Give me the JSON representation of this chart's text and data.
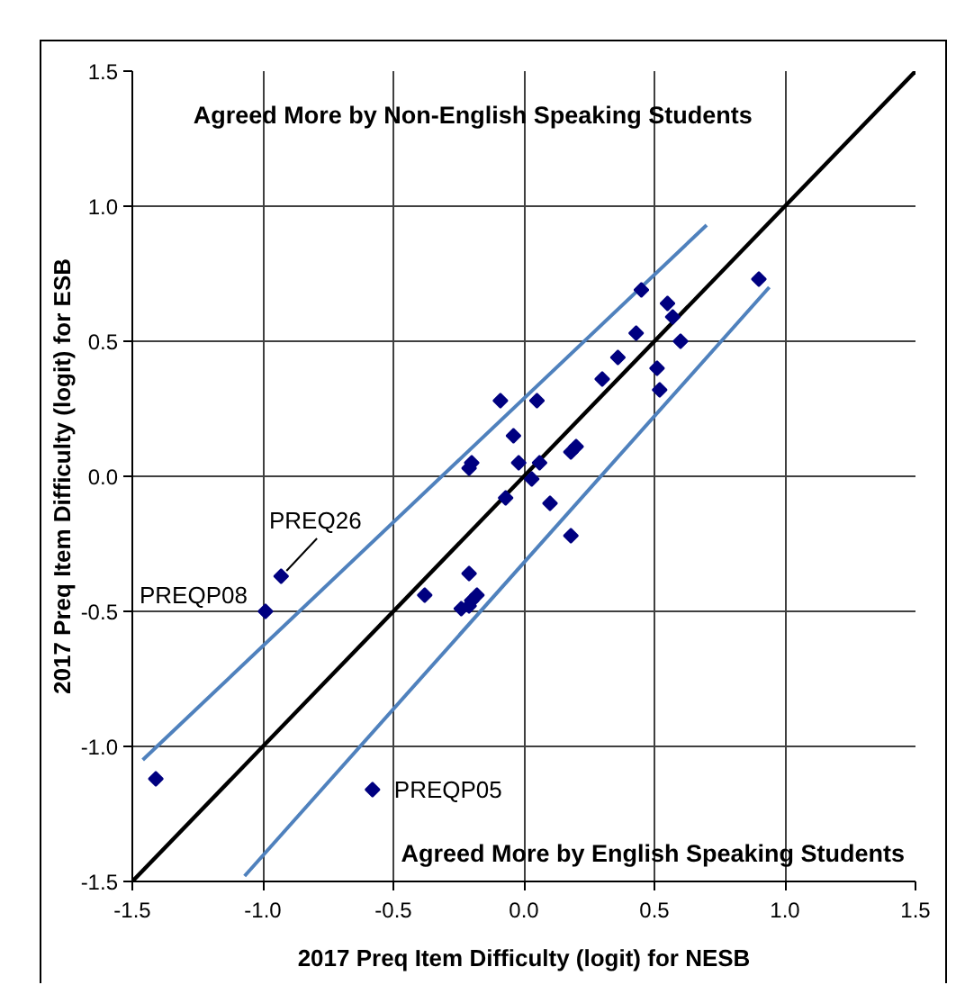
{
  "chart_data": {
    "type": "scatter",
    "xlabel": "2017 Preq Item Difficulty (logit) for NESB",
    "ylabel": "2017 Preq Item Difficulty (logit) for ESB",
    "xlim": [
      -1.5,
      1.5
    ],
    "ylim": [
      -1.5,
      1.5
    ],
    "xticks": [
      -1.5,
      {
        "value": -1,
        "label": "-1.0"
      },
      -0.5,
      {
        "value": 0,
        "label": "0.0"
      },
      0.5,
      {
        "value": 1,
        "label": "1.0"
      },
      1.5
    ],
    "yticks": [
      -1.5,
      {
        "value": -1,
        "label": "-1.0"
      },
      -0.5,
      {
        "value": 0,
        "label": "0.0"
      },
      0.5,
      {
        "value": 1,
        "label": "1.0"
      },
      1.5
    ],
    "grid": true,
    "line_style": "solid",
    "series": [
      {
        "type": "line",
        "color": "#000000",
        "x": [
          -1.5,
          1.5
        ],
        "values": [
          -1.5,
          1.5
        ]
      },
      {
        "type": "line",
        "color": "#4f81bd",
        "x": [
          -1.46,
          0.7
        ],
        "values": [
          -1.05,
          0.93
        ]
      },
      {
        "type": "line",
        "color": "#4f81bd",
        "x": [
          -1.07,
          0.94
        ],
        "values": [
          -1.48,
          0.7
        ]
      },
      {
        "type": "scatter",
        "color": "#000080",
        "marker": "diamond",
        "x": [
          0.9,
          0.45,
          0.55,
          0.57,
          0.43,
          0.6,
          0.36,
          0.51,
          0.3,
          0.52,
          -0.09,
          0.05,
          -0.04,
          0.18,
          0.2,
          -0.21,
          -0.2,
          -0.02,
          0.06,
          0.03,
          -0.07,
          0.1,
          0.18,
          -0.21,
          -0.38,
          -0.24,
          -0.21,
          -0.2,
          -0.18,
          -0.93,
          -0.99,
          -1.41,
          -0.58
        ],
        "values": [
          0.73,
          0.69,
          0.64,
          0.59,
          0.53,
          0.5,
          0.44,
          0.4,
          0.36,
          0.32,
          0.28,
          0.28,
          0.15,
          0.09,
          0.11,
          0.03,
          0.05,
          0.05,
          0.05,
          -0.01,
          -0.08,
          -0.1,
          -0.22,
          -0.36,
          -0.44,
          -0.49,
          -0.48,
          -0.46,
          -0.44,
          -0.37,
          -0.5,
          -1.12,
          -1.16
        ]
      }
    ],
    "annotations": [
      "Agreed More by Non-English Speaking Students",
      "Agreed More by English Speaking Students",
      {
        "text": "PREQ26",
        "x": -0.93,
        "y": -0.37
      },
      {
        "text": "PREQP08",
        "x": -0.99,
        "y": -0.5
      },
      {
        "text": "PREQP05",
        "x": -0.58,
        "y": -1.16
      }
    ]
  }
}
